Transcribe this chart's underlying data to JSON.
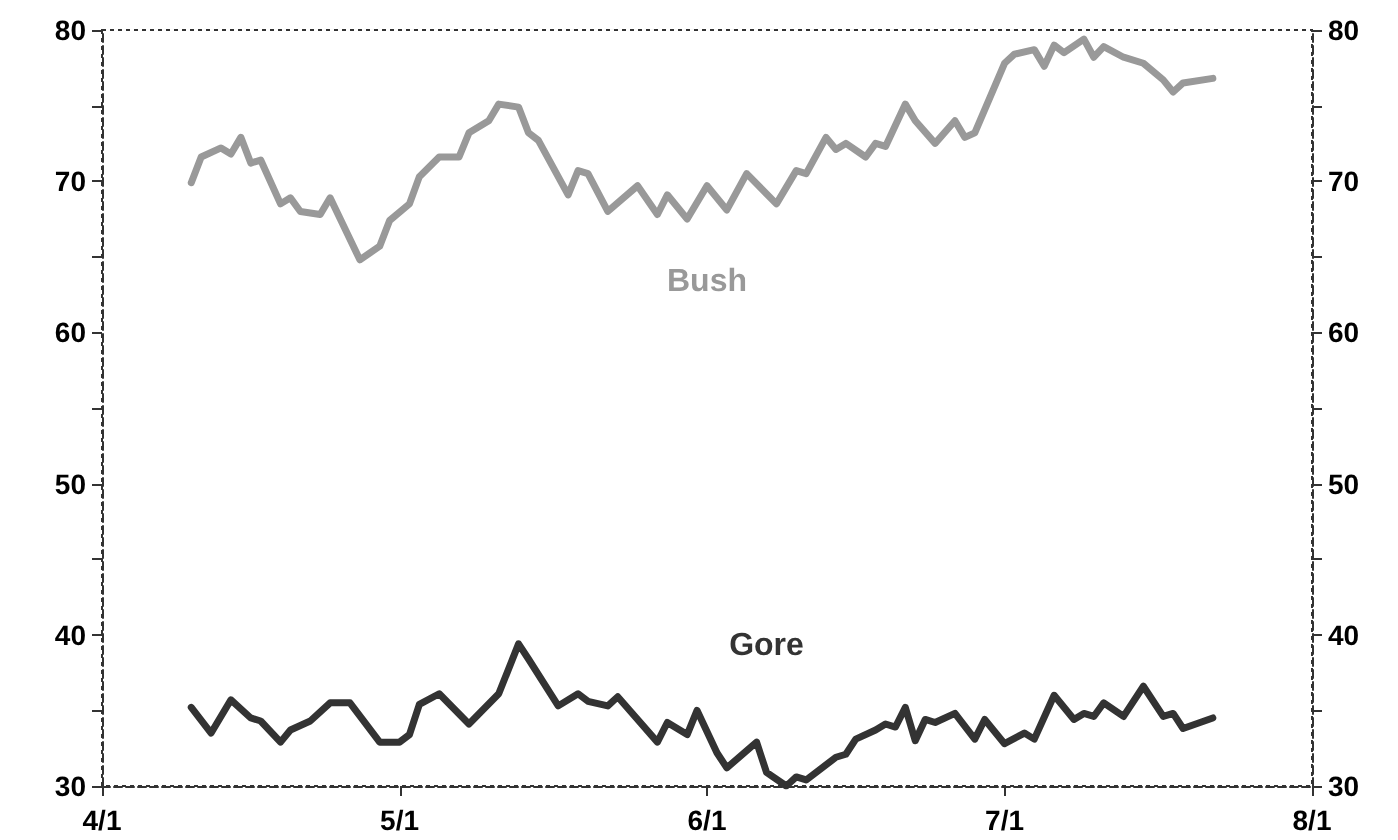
{
  "chart_data": {
    "type": "line",
    "marker": "none",
    "line_style": "solid",
    "legend": false,
    "grid": false,
    "xlim": [
      "--04-01",
      "--08-01"
    ],
    "xticks": [
      {
        "value": "--04-01",
        "label": "4/1"
      },
      {
        "value": "--05-01",
        "label": "5/1"
      },
      {
        "value": "--06-01",
        "label": "6/1"
      },
      {
        "value": "--07-01",
        "label": "7/1"
      },
      {
        "value": "--08-01",
        "label": "8/1"
      }
    ],
    "ylim": [
      30,
      80
    ],
    "yticks": [
      30,
      {
        "value": 35,
        "label": null
      },
      40,
      {
        "value": 45,
        "label": null
      },
      50,
      {
        "value": 55,
        "label": null
      },
      60,
      {
        "value": 65,
        "label": null
      },
      70,
      {
        "value": 75,
        "label": null
      },
      80
    ],
    "y2lim": [
      30,
      80
    ],
    "y2ticks": [
      30,
      {
        "value": 35,
        "label": null
      },
      40,
      {
        "value": 45,
        "label": null
      },
      50,
      {
        "value": 55,
        "label": null
      },
      60,
      {
        "value": 65,
        "label": null
      },
      70,
      {
        "value": 75,
        "label": null
      },
      80
    ],
    "series": [
      {
        "name": "Bush",
        "color": "#999999",
        "x": [
          "--04-10",
          "--04-11",
          "--04-13",
          "--04-14",
          "--04-15",
          "--04-16",
          "--04-17",
          "--04-19",
          "--04-20",
          "--04-21",
          "--04-23",
          "--04-24",
          "--04-27",
          "--04-29",
          "--04-30",
          "--05-02",
          "--05-03",
          "--05-05",
          "--05-07",
          "--05-08",
          "--05-10",
          "--05-11",
          "--05-13",
          "--05-14",
          "--05-15",
          "--05-18",
          "--05-19",
          "--05-20",
          "--05-22",
          "--05-25",
          "--05-27",
          "--05-28",
          "--05-30",
          "--06-01",
          "--06-03",
          "--06-05",
          "--06-08",
          "--06-10",
          "--06-11",
          "--06-13",
          "--06-14",
          "--06-15",
          "--06-17",
          "--06-18",
          "--06-19",
          "--06-21",
          "--06-22",
          "--06-24",
          "--06-26",
          "--06-27",
          "--06-28",
          "--07-01",
          "--07-02",
          "--07-04",
          "--07-05",
          "--07-06",
          "--07-07",
          "--07-09",
          "--07-10",
          "--07-11",
          "--07-13",
          "--07-15",
          "--07-17",
          "--07-18",
          "--07-19",
          "--07-22"
        ],
        "values": [
          69.9,
          71.6,
          72.2,
          71.8,
          72.9,
          71.2,
          71.4,
          68.5,
          68.9,
          68.0,
          67.8,
          68.9,
          64.8,
          65.7,
          67.4,
          68.5,
          70.3,
          71.6,
          71.6,
          73.2,
          74.0,
          75.1,
          74.9,
          73.2,
          72.7,
          69.1,
          70.7,
          70.5,
          68.0,
          69.7,
          67.8,
          69.1,
          67.5,
          69.7,
          68.1,
          70.5,
          68.5,
          70.7,
          70.5,
          72.9,
          72.1,
          72.5,
          71.6,
          72.5,
          72.3,
          75.1,
          74.0,
          72.5,
          74.0,
          72.9,
          73.2,
          77.8,
          78.4,
          78.7,
          77.6,
          79.0,
          78.5,
          79.4,
          78.2,
          78.9,
          78.2,
          77.8,
          76.7,
          75.9,
          76.5,
          76.8
        ]
      },
      {
        "name": "Gore",
        "color": "#333333",
        "x": [
          "--04-10",
          "--04-12",
          "--04-14",
          "--04-16",
          "--04-17",
          "--04-19",
          "--04-20",
          "--04-22",
          "--04-24",
          "--04-26",
          "--04-29",
          "--05-01",
          "--05-02",
          "--05-03",
          "--05-05",
          "--05-08",
          "--05-11",
          "--05-13",
          "--05-14",
          "--05-17",
          "--05-19",
          "--05-20",
          "--05-22",
          "--05-23",
          "--05-27",
          "--05-28",
          "--05-30",
          "--05-31",
          "--06-02",
          "--06-03",
          "--06-06",
          "--06-07",
          "--06-09",
          "--06-10",
          "--06-11",
          "--06-14",
          "--06-15",
          "--06-16",
          "--06-18",
          "--06-19",
          "--06-20",
          "--06-21",
          "--06-22",
          "--06-23",
          "--06-24",
          "--06-26",
          "--06-28",
          "--06-29",
          "--07-01",
          "--07-03",
          "--07-04",
          "--07-06",
          "--07-08",
          "--07-09",
          "--07-10",
          "--07-11",
          "--07-13",
          "--07-15",
          "--07-17",
          "--07-18",
          "--07-19",
          "--07-22"
        ],
        "values": [
          35.2,
          33.5,
          35.7,
          34.5,
          34.3,
          32.9,
          33.7,
          34.3,
          35.5,
          35.5,
          32.9,
          32.9,
          33.4,
          35.4,
          36.1,
          34.1,
          36.1,
          39.4,
          38.4,
          35.3,
          36.1,
          35.6,
          35.3,
          35.9,
          32.9,
          34.2,
          33.4,
          35.0,
          32.2,
          31.2,
          32.9,
          30.9,
          30.0,
          30.6,
          30.4,
          31.9,
          32.1,
          33.1,
          33.7,
          34.1,
          33.9,
          35.2,
          33.0,
          34.4,
          34.2,
          34.8,
          33.1,
          34.4,
          32.8,
          33.5,
          33.1,
          36.0,
          34.4,
          34.8,
          34.6,
          35.5,
          34.6,
          36.6,
          34.6,
          34.8,
          33.8,
          34.5
        ]
      }
    ]
  }
}
